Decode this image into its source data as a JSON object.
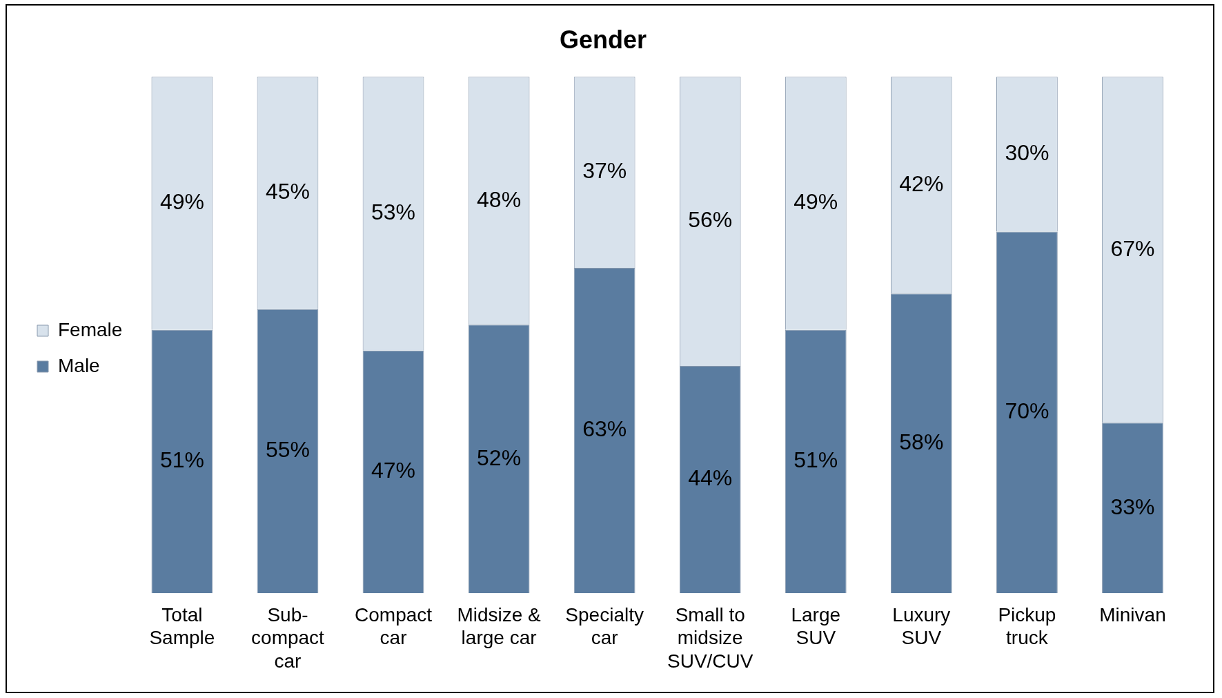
{
  "chart_data": {
    "type": "bar",
    "title": "Gender",
    "stacked": true,
    "legend": "left",
    "tick_labels": "x",
    "grid": false,
    "categories": [
      "Total Sample",
      "Sub-compact car",
      "Compact car",
      "Midsize & large car",
      "Specialty car",
      "Small to midsize SUV/CUV",
      "Large SUV",
      "Luxury SUV",
      "Pickup truck",
      "Minivan"
    ],
    "series": [
      {
        "name": "Male",
        "color": "#5a7ca0",
        "values": [
          51,
          55,
          47,
          52,
          63,
          44,
          51,
          58,
          70,
          33
        ],
        "value_labels": [
          "51%",
          "55%",
          "47%",
          "52%",
          "63%",
          "44%",
          "51%",
          "58%",
          "70%",
          "33%"
        ]
      },
      {
        "name": "Female",
        "color": "#d8e2ec",
        "values": [
          49,
          45,
          53,
          48,
          37,
          56,
          49,
          42,
          30,
          67
        ],
        "value_labels": [
          "49%",
          "45%",
          "53%",
          "48%",
          "37%",
          "56%",
          "49%",
          "42%",
          "30%",
          "67%"
        ]
      }
    ]
  }
}
